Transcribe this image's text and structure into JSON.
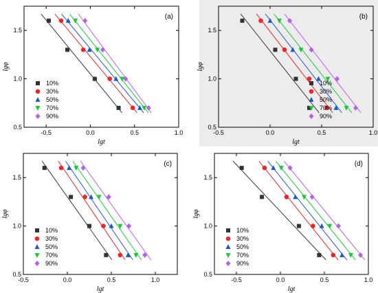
{
  "chart_data": [
    {
      "type": "scatter",
      "panel_label": "(a)",
      "xlabel": "lgt",
      "ylabel": "lgφ",
      "xlim": [
        -0.75,
        1.0
      ],
      "ylim": [
        0.5,
        1.75
      ],
      "xticks": [
        "-0.5",
        "0.0",
        "0.5",
        "1.0"
      ],
      "yticks": [
        "0.5",
        "1.0",
        "1.5"
      ],
      "background": "#ffffff",
      "legend": "bottom-left",
      "fit_lines": true,
      "series": [
        {
          "name": "10%",
          "color": "#333333",
          "marker": "square",
          "points": [
            [
              -0.47,
              1.6
            ],
            [
              -0.26,
              1.3
            ],
            [
              0.05,
              1.0
            ],
            [
              0.32,
              0.7
            ]
          ]
        },
        {
          "name": "30%",
          "color": "#e8262b",
          "marker": "circle",
          "points": [
            [
              -0.33,
              1.6
            ],
            [
              -0.08,
              1.3
            ],
            [
              0.22,
              1.0
            ],
            [
              0.48,
              0.7
            ]
          ]
        },
        {
          "name": "50%",
          "color": "#1f58c4",
          "marker": "triangle-up",
          "points": [
            [
              -0.25,
              1.6
            ],
            [
              -0.01,
              1.3
            ],
            [
              0.29,
              1.0
            ],
            [
              0.56,
              0.7
            ]
          ]
        },
        {
          "name": "70%",
          "color": "#1ec43a",
          "marker": "triangle-down",
          "points": [
            [
              -0.17,
              1.6
            ],
            [
              0.08,
              1.3
            ],
            [
              0.36,
              1.0
            ],
            [
              0.61,
              0.7
            ]
          ]
        },
        {
          "name": "90%",
          "color": "#b460e8",
          "marker": "diamond",
          "points": [
            [
              -0.06,
              1.6
            ],
            [
              0.14,
              1.3
            ],
            [
              0.4,
              1.0
            ],
            [
              0.66,
              0.7
            ]
          ]
        }
      ]
    },
    {
      "type": "scatter",
      "panel_label": "(b)",
      "xlabel": "lgt",
      "ylabel": "lgφ",
      "xlim": [
        -0.5,
        1.0
      ],
      "ylim": [
        0.5,
        1.75
      ],
      "xticks": [
        "-0.5",
        "0.0",
        "0.5",
        "1.0"
      ],
      "yticks": [
        "0.5",
        "1.0",
        "1.5"
      ],
      "background": "#ececec",
      "legend": "bottom-right",
      "fit_lines": true,
      "series": [
        {
          "name": "10%",
          "color": "#333333",
          "marker": "square",
          "points": [
            [
              -0.27,
              1.6
            ],
            [
              0.05,
              1.3
            ],
            [
              0.25,
              1.0
            ],
            [
              0.38,
              0.7
            ]
          ]
        },
        {
          "name": "30%",
          "color": "#e8262b",
          "marker": "circle",
          "points": [
            [
              -0.09,
              1.6
            ],
            [
              0.14,
              1.3
            ],
            [
              0.38,
              1.0
            ],
            [
              0.55,
              0.7
            ]
          ]
        },
        {
          "name": "50%",
          "color": "#1f58c4",
          "marker": "triangle-up",
          "points": [
            [
              0.0,
              1.6
            ],
            [
              0.22,
              1.3
            ],
            [
              0.47,
              1.0
            ],
            [
              0.64,
              0.7
            ]
          ]
        },
        {
          "name": "70%",
          "color": "#1ec43a",
          "marker": "triangle-down",
          "points": [
            [
              0.09,
              1.6
            ],
            [
              0.3,
              1.3
            ],
            [
              0.56,
              1.0
            ],
            [
              0.74,
              0.7
            ]
          ]
        },
        {
          "name": "90%",
          "color": "#b460e8",
          "marker": "diamond",
          "points": [
            [
              0.19,
              1.6
            ],
            [
              0.4,
              1.3
            ],
            [
              0.65,
              1.0
            ],
            [
              0.83,
              0.7
            ]
          ]
        }
      ]
    },
    {
      "type": "scatter",
      "panel_label": "(c)",
      "xlabel": "lgt",
      "ylabel": "lgφ",
      "xlim": [
        -0.5,
        1.25
      ],
      "ylim": [
        0.5,
        1.75
      ],
      "xticks": [
        "-0.5",
        "0.0",
        "0.5",
        "1.0"
      ],
      "yticks": [
        "0.5",
        "1.0",
        "1.5"
      ],
      "background": "#ffffff",
      "legend": "bottom-left",
      "fit_lines": true,
      "series": [
        {
          "name": "10%",
          "color": "#333333",
          "marker": "square",
          "points": [
            [
              -0.26,
              1.6
            ],
            [
              0.04,
              1.3
            ],
            [
              0.25,
              1.0
            ],
            [
              0.44,
              0.7
            ]
          ]
        },
        {
          "name": "30%",
          "color": "#e8262b",
          "marker": "circle",
          "points": [
            [
              -0.07,
              1.6
            ],
            [
              0.2,
              1.3
            ],
            [
              0.41,
              1.0
            ],
            [
              0.6,
              0.7
            ]
          ]
        },
        {
          "name": "50%",
          "color": "#1f58c4",
          "marker": "triangle-up",
          "points": [
            [
              0.02,
              1.6
            ],
            [
              0.27,
              1.3
            ],
            [
              0.5,
              1.0
            ],
            [
              0.69,
              0.7
            ]
          ]
        },
        {
          "name": "70%",
          "color": "#1ec43a",
          "marker": "triangle-down",
          "points": [
            [
              0.1,
              1.6
            ],
            [
              0.36,
              1.3
            ],
            [
              0.6,
              1.0
            ],
            [
              0.78,
              0.7
            ]
          ]
        },
        {
          "name": "90%",
          "color": "#b460e8",
          "marker": "diamond",
          "points": [
            [
              0.18,
              1.6
            ],
            [
              0.47,
              1.3
            ],
            [
              0.7,
              1.0
            ],
            [
              0.88,
              0.7
            ]
          ]
        }
      ]
    },
    {
      "type": "scatter",
      "panel_label": "(d)",
      "xlabel": "lgt",
      "ylabel": "lgφ",
      "xlim": [
        -0.75,
        1.0
      ],
      "ylim": [
        0.5,
        1.75
      ],
      "xticks": [
        "-0.5",
        "0.0",
        "0.5",
        "1.0"
      ],
      "yticks": [
        "0.5",
        "1.0",
        "1.5"
      ],
      "background": "#ffffff",
      "legend": "bottom-left",
      "fit_lines": true,
      "series": [
        {
          "name": "10%",
          "color": "#333333",
          "marker": "square",
          "points": [
            [
              -0.44,
              1.6
            ],
            [
              -0.21,
              1.3
            ],
            [
              0.21,
              1.0
            ],
            [
              0.44,
              0.7
            ]
          ]
        },
        {
          "name": "30%",
          "color": "#e8262b",
          "marker": "circle",
          "points": [
            [
              -0.18,
              1.6
            ],
            [
              0.07,
              1.3
            ],
            [
              0.37,
              1.0
            ],
            [
              0.6,
              0.7
            ]
          ]
        },
        {
          "name": "50%",
          "color": "#1f58c4",
          "marker": "triangle-up",
          "points": [
            [
              -0.08,
              1.6
            ],
            [
              0.17,
              1.3
            ],
            [
              0.47,
              1.0
            ],
            [
              0.7,
              0.7
            ]
          ]
        },
        {
          "name": "70%",
          "color": "#1ec43a",
          "marker": "triangle-down",
          "points": [
            [
              0.01,
              1.6
            ],
            [
              0.27,
              1.3
            ],
            [
              0.56,
              1.0
            ],
            [
              0.8,
              0.7
            ]
          ]
        },
        {
          "name": "90%",
          "color": "#b460e8",
          "marker": "diamond",
          "points": [
            [
              0.11,
              1.6
            ],
            [
              0.36,
              1.3
            ],
            [
              0.66,
              1.0
            ],
            [
              0.91,
              0.7
            ]
          ]
        }
      ]
    }
  ]
}
